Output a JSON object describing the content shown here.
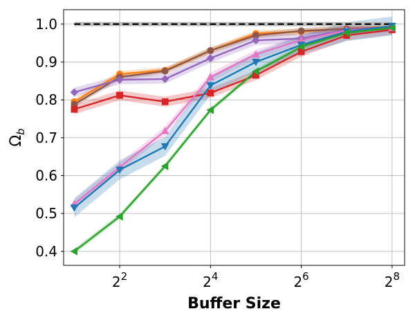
{
  "chart_data": {
    "type": "line",
    "xlabel": "Buffer Size",
    "ylabel_base": "Ω",
    "ylabel_sub": "b",
    "x_scale": "log2",
    "xlim": [
      1.7,
      310
    ],
    "ylim": [
      0.363,
      1.038
    ],
    "x_ticks": [
      {
        "value": 4,
        "base": "2",
        "exp": "2"
      },
      {
        "value": 16,
        "base": "2",
        "exp": "4"
      },
      {
        "value": 64,
        "base": "2",
        "exp": "6"
      },
      {
        "value": 256,
        "base": "2",
        "exp": "8"
      }
    ],
    "y_ticks": [
      {
        "value": 0.4,
        "label": "0.4"
      },
      {
        "value": 0.5,
        "label": "0.5"
      },
      {
        "value": 0.6,
        "label": "0.6"
      },
      {
        "value": 0.7,
        "label": "0.7"
      },
      {
        "value": 0.8,
        "label": "0.8"
      },
      {
        "value": 0.9,
        "label": "0.9"
      },
      {
        "value": 1.0,
        "label": "1.0"
      }
    ],
    "grid": true,
    "x": [
      2,
      4,
      8,
      16,
      32,
      64,
      128,
      256
    ],
    "reference_line": {
      "y": 1.0,
      "x_range": [
        2,
        256
      ],
      "color": "#000000",
      "style": "dashed"
    },
    "series": [
      {
        "color": "#ff7f0e",
        "marker": "circle",
        "values": [
          0.795,
          0.868,
          0.878,
          0.93,
          0.975,
          0.98,
          0.988,
          0.993
        ],
        "band": 0.008
      },
      {
        "color": "#8c564b",
        "marker": "circle",
        "values": [
          0.788,
          0.86,
          0.876,
          0.93,
          0.97,
          0.982,
          0.987,
          0.992
        ],
        "band": 0.008
      },
      {
        "color": "#9467bd",
        "marker": "diamond",
        "values": [
          0.82,
          0.853,
          0.855,
          0.91,
          0.957,
          0.962,
          0.985,
          0.993
        ],
        "band": 0.012
      },
      {
        "color": "#d62728",
        "marker": "square",
        "values": [
          0.775,
          0.812,
          0.795,
          0.818,
          0.865,
          0.927,
          0.97,
          0.985
        ],
        "band": 0.013
      },
      {
        "color": "#e377c2",
        "marker": "triangle-up",
        "values": [
          0.525,
          0.622,
          0.718,
          0.86,
          0.92,
          0.958,
          0.983,
          0.99
        ],
        "band": 0.012
      },
      {
        "color": "#1f77b4",
        "marker": "triangle-down",
        "values": [
          0.515,
          0.615,
          0.677,
          0.838,
          0.9,
          0.945,
          0.98,
          0.995
        ],
        "band": 0.025
      },
      {
        "color": "#2ca02c",
        "marker": "triangle-left",
        "values": [
          0.4,
          0.492,
          0.625,
          0.773,
          0.875,
          0.94,
          0.977,
          0.99
        ],
        "band": 0.007
      }
    ]
  }
}
